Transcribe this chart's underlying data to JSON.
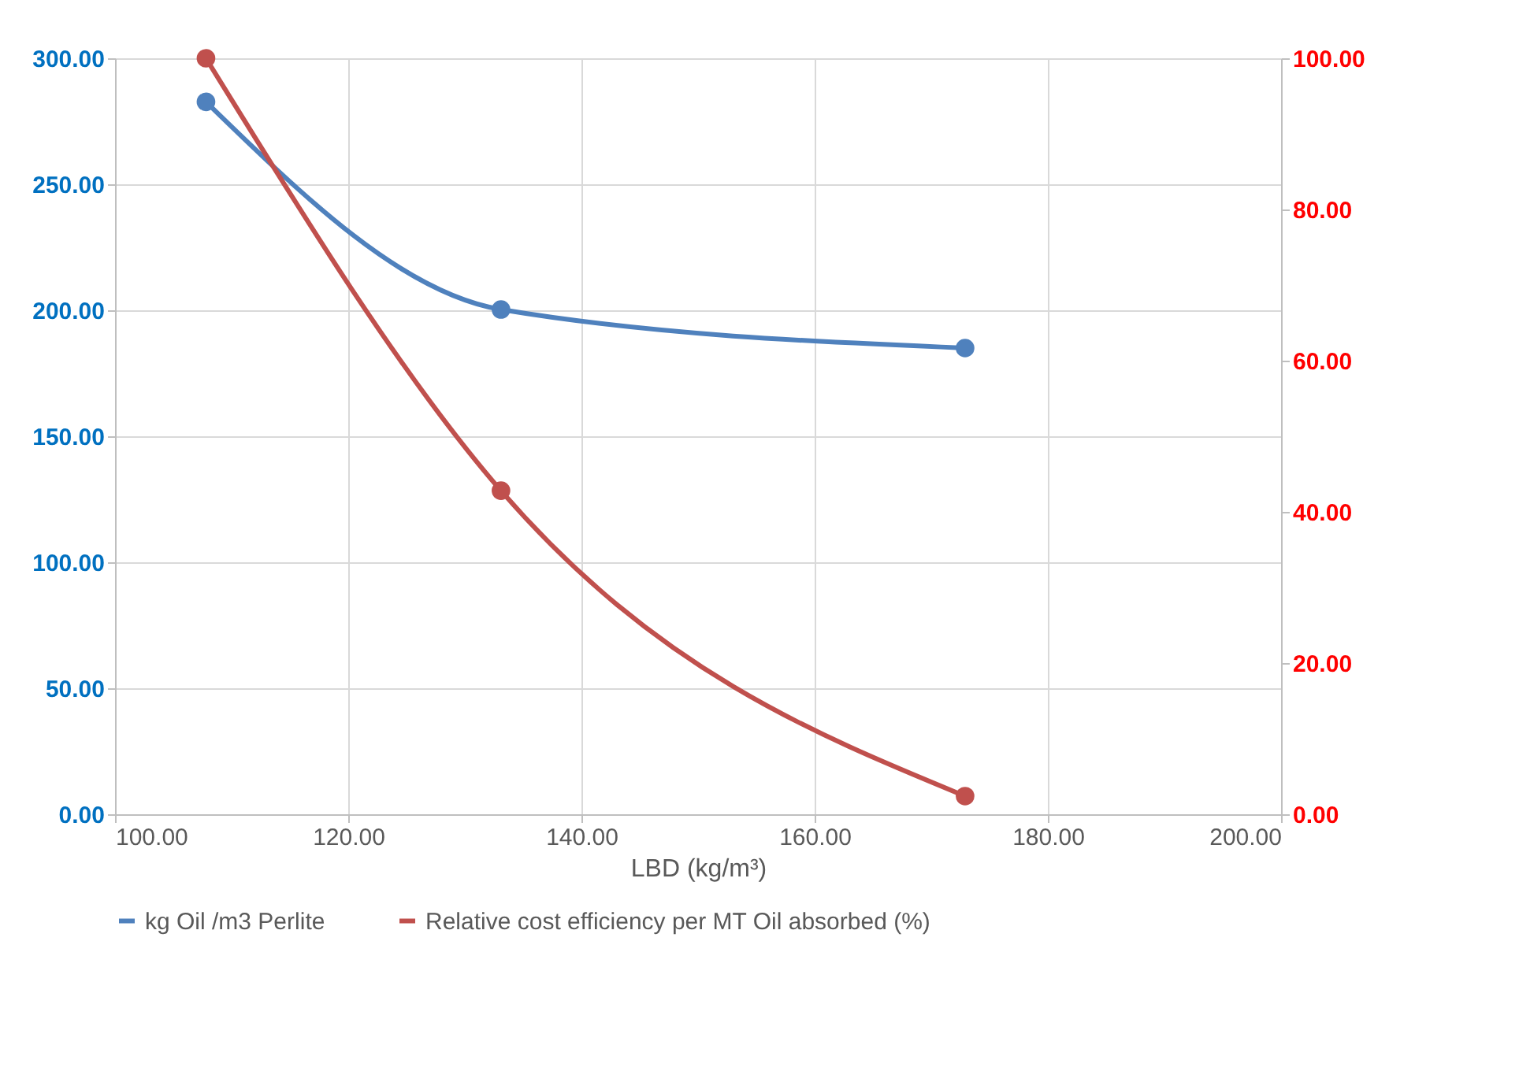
{
  "chart_data": {
    "type": "line",
    "xlabel": "LBD (kg/m³)",
    "x": [
      107.8,
      133.1,
      172.9
    ],
    "series": [
      {
        "name": "kg Oil /m3 Perlite",
        "color": "#4f81bd",
        "values": [
          282.7,
          200.3,
          185.0
        ]
      },
      {
        "name": "Relative cost efficiency per MT Oil absorbed (%)",
        "color": "#c0504d",
        "values": [
          100.0,
          42.8,
          2.4
        ],
        "axis": "y2"
      }
    ],
    "xlim": [
      100,
      200
    ],
    "xticks": [
      {
        "value": 100,
        "label": "100.00"
      },
      {
        "value": 120,
        "label": "120.00"
      },
      {
        "value": 140,
        "label": "140.00"
      },
      {
        "value": 160,
        "label": "160.00"
      },
      {
        "value": 180,
        "label": "180.00"
      },
      {
        "value": 200,
        "label": "200.00"
      }
    ],
    "ylim": [
      0,
      300
    ],
    "yticks": [
      {
        "value": 0,
        "label": "0.00"
      },
      {
        "value": 50,
        "label": "50.00"
      },
      {
        "value": 100,
        "label": "100.00"
      },
      {
        "value": 150,
        "label": "150.00"
      },
      {
        "value": 200,
        "label": "200.00"
      },
      {
        "value": 250,
        "label": "250.00"
      },
      {
        "value": 300,
        "label": "300.00"
      }
    ],
    "y2lim": [
      0,
      100
    ],
    "y2ticks": [
      {
        "value": 0,
        "label": "0.00"
      },
      {
        "value": 20,
        "label": "20.00"
      },
      {
        "value": 40,
        "label": "40.00"
      },
      {
        "value": 60,
        "label": "60.00"
      },
      {
        "value": 80,
        "label": "80.00"
      },
      {
        "value": 100,
        "label": "100.00"
      }
    ],
    "grid": true,
    "legend": "bottom",
    "marker": "circle",
    "line_style": "solid"
  }
}
